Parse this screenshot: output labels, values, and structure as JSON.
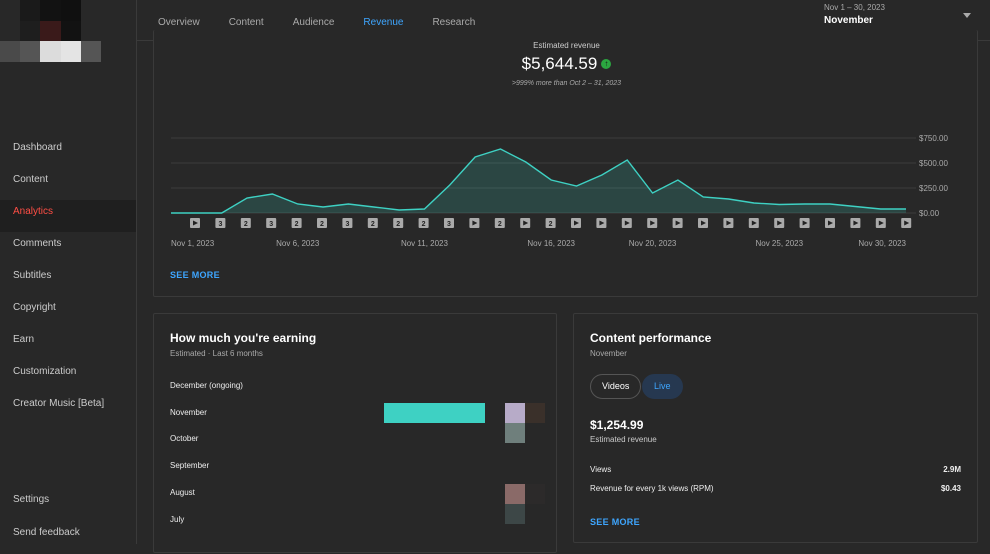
{
  "sidebar": {
    "items": [
      {
        "label": "Dashboard",
        "active": false
      },
      {
        "label": "Content",
        "active": false
      },
      {
        "label": "Analytics",
        "active": true
      },
      {
        "label": "Comments",
        "active": false
      },
      {
        "label": "Subtitles",
        "active": false
      },
      {
        "label": "Copyright",
        "active": false
      },
      {
        "label": "Earn",
        "active": false
      },
      {
        "label": "Customization",
        "active": false
      },
      {
        "label": "Creator Music [Beta]",
        "active": false
      }
    ],
    "bottom_items": [
      {
        "label": "Settings"
      },
      {
        "label": "Send feedback"
      }
    ]
  },
  "header": {
    "tabs": [
      {
        "label": "Overview",
        "active": false
      },
      {
        "label": "Content",
        "active": false
      },
      {
        "label": "Audience",
        "active": false
      },
      {
        "label": "Revenue",
        "active": true
      },
      {
        "label": "Research",
        "active": false
      }
    ],
    "date_range": "Nov 1 – 30, 2023",
    "period": "November"
  },
  "revenue_summary": {
    "label": "Estimated revenue",
    "value": "$5,644.59",
    "comparison": ">999% more than Oct 2 – 31, 2023",
    "see_more": "SEE MORE"
  },
  "chart_data": {
    "type": "area",
    "x": [
      "Nov 1",
      "Nov 2",
      "Nov 3",
      "Nov 4",
      "Nov 5",
      "Nov 6",
      "Nov 7",
      "Nov 8",
      "Nov 9",
      "Nov 10",
      "Nov 11",
      "Nov 12",
      "Nov 13",
      "Nov 14",
      "Nov 15",
      "Nov 16",
      "Nov 17",
      "Nov 18",
      "Nov 19",
      "Nov 20",
      "Nov 21",
      "Nov 22",
      "Nov 23",
      "Nov 24",
      "Nov 25",
      "Nov 26",
      "Nov 27",
      "Nov 28",
      "Nov 29",
      "Nov 30"
    ],
    "series": [
      {
        "values": [
          0,
          0,
          0,
          150,
          190,
          90,
          60,
          90,
          60,
          30,
          40,
          280,
          560,
          640,
          510,
          330,
          270,
          380,
          530,
          200,
          330,
          160,
          140,
          100,
          85,
          90,
          90,
          65,
          40,
          40
        ]
      }
    ],
    "x_tick_labels": [
      "Nov 1, 2023",
      "Nov 6, 2023",
      "Nov 11, 2023",
      "Nov 16, 2023",
      "Nov 20, 2023",
      "Nov 25, 2023",
      "Nov 30, 2023"
    ],
    "y_tick_labels": [
      "$750.00",
      "$500.00",
      "$250.00",
      "$0.00"
    ],
    "ylim": [
      0,
      750
    ],
    "y_ticks": [
      0,
      250,
      500,
      750
    ],
    "grid": true,
    "upload_markers": [
      "play",
      "3",
      "2",
      "3",
      "2",
      "2",
      "3",
      "2",
      "2",
      "2",
      "3",
      "play",
      "2",
      "play",
      "2",
      "play",
      "play",
      "play",
      "play",
      "play",
      "play",
      "play",
      "play",
      "play",
      "play",
      "play",
      "play",
      "play",
      "play"
    ],
    "marker_color": "#aaaaaa",
    "line_color": "#3ed1c3"
  },
  "earning": {
    "title": "How much you're earning",
    "subtitle": "Estimated · Last 6 months",
    "months": [
      {
        "label": "December (ongoing)",
        "bar_fraction": 0
      },
      {
        "label": "November",
        "bar_fraction": 0.81
      },
      {
        "label": "October",
        "bar_fraction": 0
      },
      {
        "label": "September",
        "bar_fraction": 0
      },
      {
        "label": "August",
        "bar_fraction": 0
      },
      {
        "label": "July",
        "bar_fraction": 0
      }
    ],
    "bar_color": "#3ed1c3"
  },
  "performance": {
    "title": "Content performance",
    "subtitle": "November",
    "chips": [
      {
        "label": "Videos",
        "active": false
      },
      {
        "label": "Live",
        "active": true
      }
    ],
    "value": "$1,254.99",
    "value_label": "Estimated revenue",
    "rows": [
      {
        "label": "Views",
        "value": "2.9M"
      },
      {
        "label": "Revenue for every 1k views (RPM)",
        "value": "$0.43"
      }
    ],
    "see_more": "SEE MORE"
  },
  "icons": {
    "up_arrow": "arrow-up-icon",
    "caret": "caret-down-icon"
  }
}
